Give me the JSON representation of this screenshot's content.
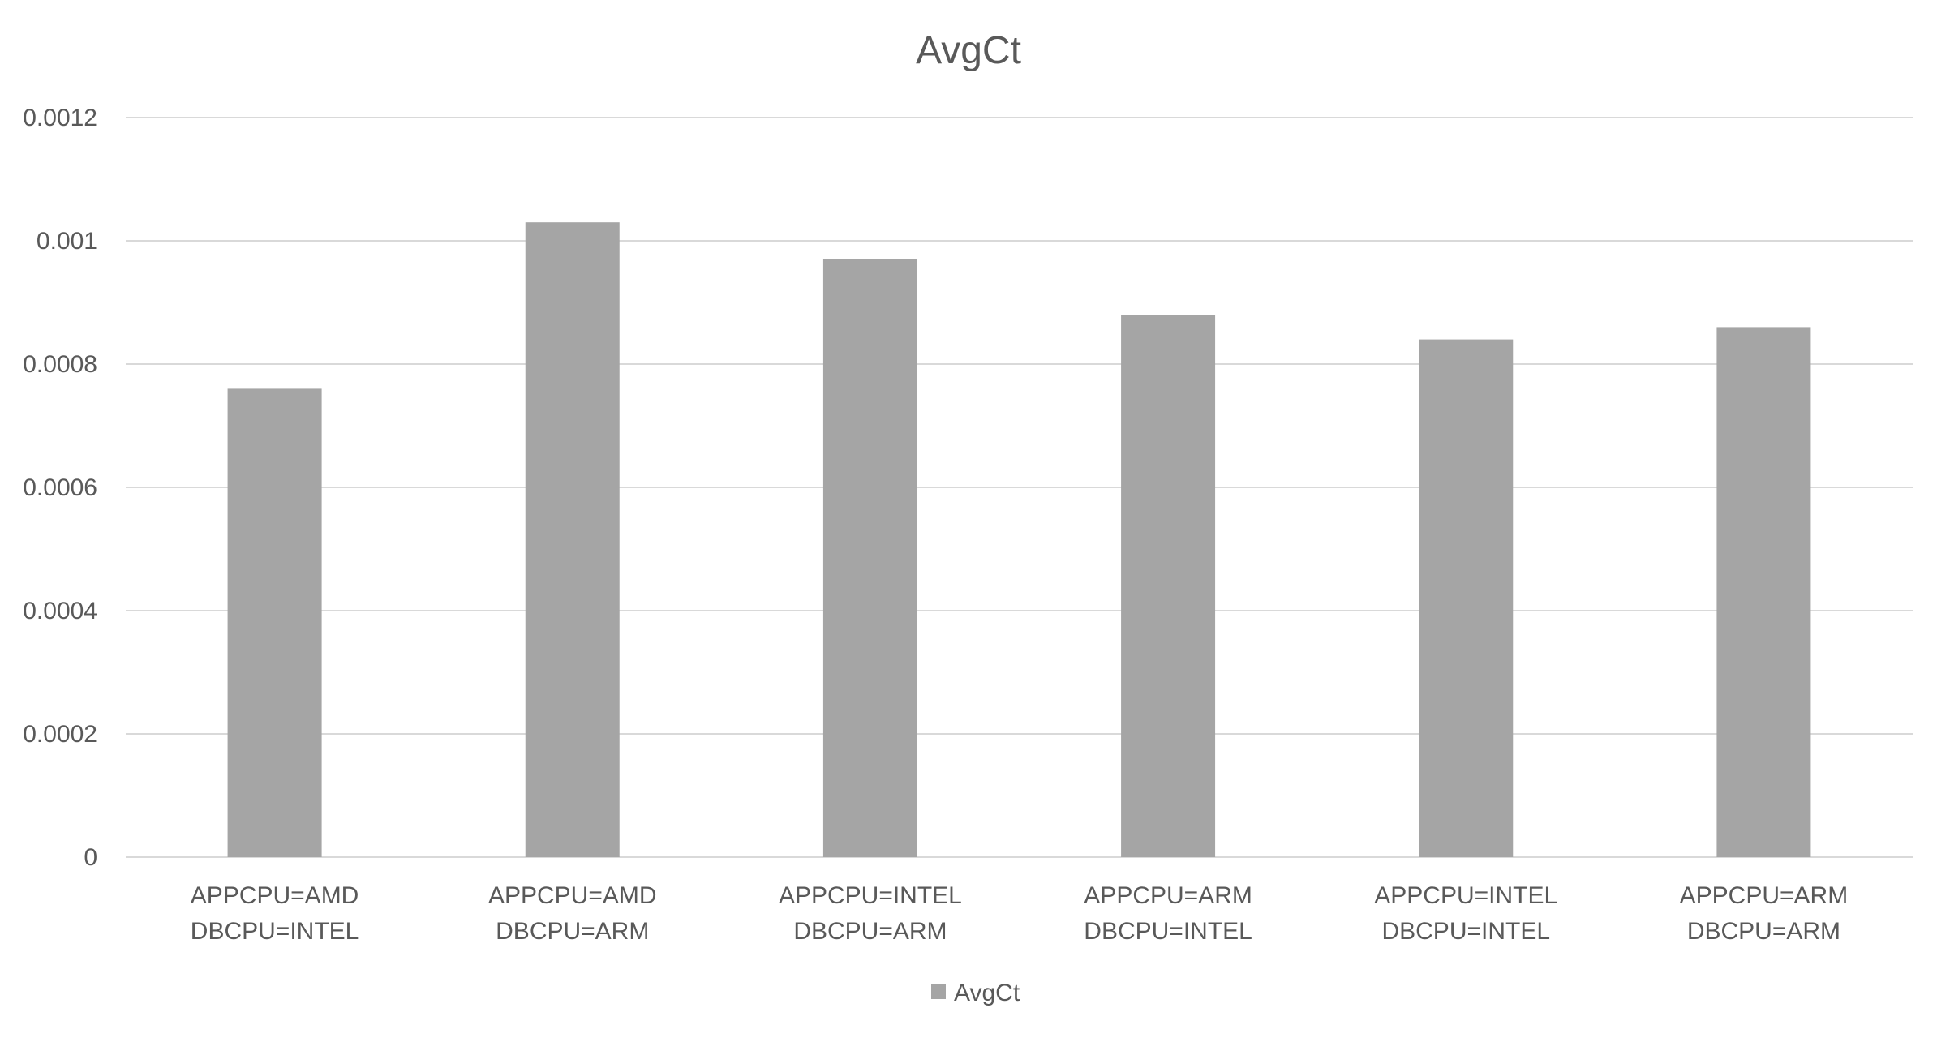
{
  "chart_data": {
    "type": "bar",
    "title": "AvgCt",
    "xlabel": "",
    "ylabel": "",
    "categories": [
      [
        "APPCPU=AMD",
        "DBCPU=INTEL"
      ],
      [
        "APPCPU=AMD",
        "DBCPU=ARM"
      ],
      [
        "APPCPU=INTEL",
        "DBCPU=ARM"
      ],
      [
        "APPCPU=ARM",
        "DBCPU=INTEL"
      ],
      [
        "APPCPU=INTEL",
        "DBCPU=INTEL"
      ],
      [
        "APPCPU=ARM",
        "DBCPU=ARM"
      ]
    ],
    "series": [
      {
        "name": "AvgCt",
        "values": [
          0.00076,
          0.00103,
          0.00097,
          0.00088,
          0.00084,
          0.00086
        ]
      }
    ],
    "ylim": [
      0,
      0.0012
    ],
    "yticks": [
      "0",
      "0.0002",
      "0.0004",
      "0.0006",
      "0.0008",
      "0.001",
      "0.0012"
    ],
    "grid": true,
    "legend_position": "bottom",
    "bar_color": "#a5a5a5"
  }
}
